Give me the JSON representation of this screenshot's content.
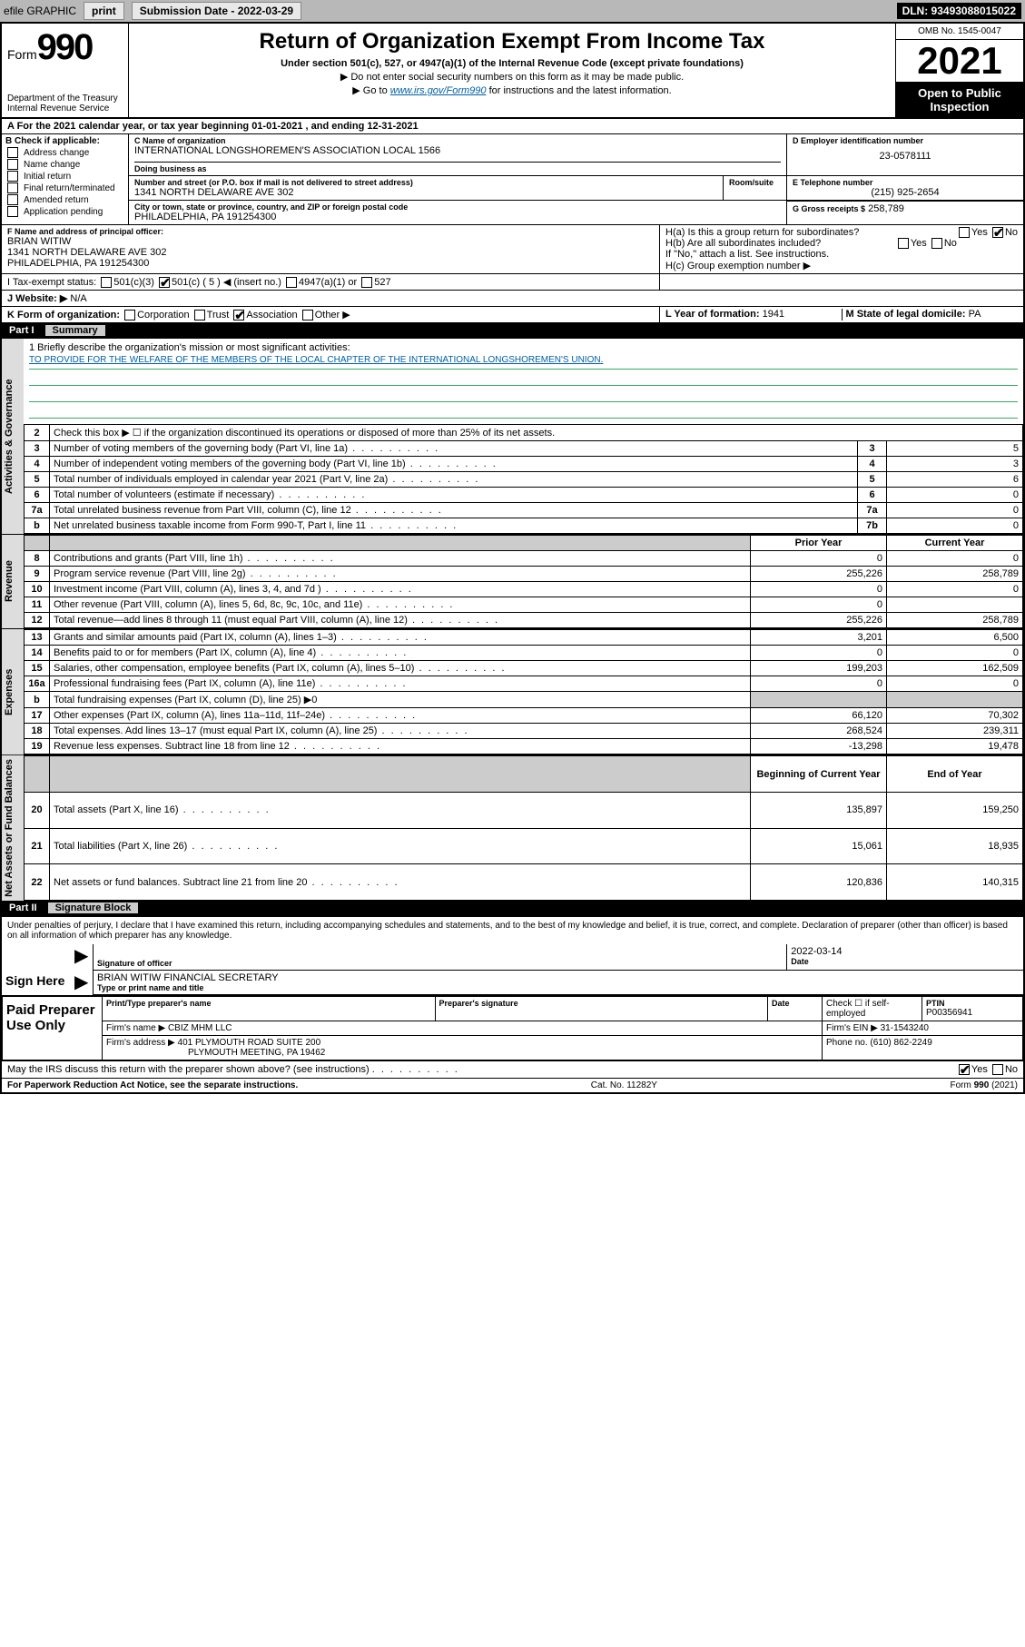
{
  "toolbar": {
    "efile_label": "efile GRAPHIC",
    "print_label": "print",
    "submission_label": "Submission Date - 2022-03-29",
    "dln": "DLN: 93493088015022"
  },
  "header": {
    "form_word": "Form",
    "form_num": "990",
    "dept": "Department of the Treasury\nInternal Revenue Service",
    "title": "Return of Organization Exempt From Income Tax",
    "subtitle": "Under section 501(c), 527, or 4947(a)(1) of the Internal Revenue Code (except private foundations)",
    "note1": "▶ Do not enter social security numbers on this form as it may be made public.",
    "note2_pre": "▶ Go to ",
    "note2_link": "www.irs.gov/Form990",
    "note2_post": " for instructions and the latest information.",
    "omb": "OMB No. 1545-0047",
    "year": "2021",
    "open_public": "Open to Public Inspection"
  },
  "line_a": "A For the 2021 calendar year, or tax year beginning 01-01-2021    , and ending 12-31-2021",
  "section_b": {
    "header": "B Check if applicable:",
    "items": [
      "Address change",
      "Name change",
      "Initial return",
      "Final return/terminated",
      "Amended return",
      "Application pending"
    ]
  },
  "section_c": {
    "name_label": "C Name of organization",
    "name": "INTERNATIONAL LONGSHOREMEN'S ASSOCIATION LOCAL 1566",
    "dba_label": "Doing business as",
    "addr_label": "Number and street (or P.O. box if mail is not delivered to street address)",
    "room_label": "Room/suite",
    "addr": "1341 NORTH DELAWARE AVE 302",
    "city_label": "City or town, state or province, country, and ZIP or foreign postal code",
    "city": "PHILADELPHIA, PA  191254300"
  },
  "section_d": {
    "label": "D Employer identification number",
    "value": "23-0578111"
  },
  "section_e": {
    "label": "E Telephone number",
    "value": "(215) 925-2654"
  },
  "section_g": {
    "label": "G Gross receipts $",
    "value": "258,789"
  },
  "section_f": {
    "label": "F  Name and address of principal officer:",
    "name": "BRIAN WITIW",
    "addr1": "1341 NORTH DELAWARE AVE 302",
    "addr2": "PHILADELPHIA, PA  191254300"
  },
  "section_h": {
    "ha": "H(a)  Is this a group return for subordinates?",
    "hb": "H(b)  Are all subordinates included?",
    "hb_note": "If \"No,\" attach a list. See instructions.",
    "hc": "H(c)  Group exemption number ▶",
    "yes": "Yes",
    "no": "No"
  },
  "section_i": {
    "label": "I     Tax-exempt status:",
    "c3": "501(c)(3)",
    "c": "501(c) ( 5 ) ◀ (insert no.)",
    "a1": "4947(a)(1) or",
    "s527": "527"
  },
  "section_j": {
    "label": "J    Website: ▶",
    "value": "N/A"
  },
  "section_k": {
    "label": "K Form of organization:",
    "corp": "Corporation",
    "trust": "Trust",
    "assoc": "Association",
    "other": "Other ▶"
  },
  "section_l": {
    "label": "L Year of formation:",
    "value": "1941"
  },
  "section_m": {
    "label": "M State of legal domicile:",
    "value": "PA"
  },
  "part1": {
    "label": "Part I",
    "title": "Summary",
    "q1": "1  Briefly describe the organization's mission or most significant activities:",
    "mission": "TO PROVIDE FOR THE WELFARE OF THE MEMBERS OF THE LOCAL CHAPTER OF THE INTERNATIONAL LONGSHOREMEN'S UNION.",
    "side_gov": "Activities & Governance",
    "side_rev": "Revenue",
    "side_exp": "Expenses",
    "side_net": "Net Assets or Fund Balances",
    "rows_gov": [
      {
        "n": "2",
        "d": "Check this box ▶ ☐  if the organization discontinued its operations or disposed of more than 25% of its net assets."
      },
      {
        "n": "3",
        "d": "Number of voting members of the governing body (Part VI, line 1a)",
        "box": "3",
        "v": "5"
      },
      {
        "n": "4",
        "d": "Number of independent voting members of the governing body (Part VI, line 1b)",
        "box": "4",
        "v": "3"
      },
      {
        "n": "5",
        "d": "Total number of individuals employed in calendar year 2021 (Part V, line 2a)",
        "box": "5",
        "v": "6"
      },
      {
        "n": "6",
        "d": "Total number of volunteers (estimate if necessary)",
        "box": "6",
        "v": "0"
      },
      {
        "n": "7a",
        "d": "Total unrelated business revenue from Part VIII, column (C), line 12",
        "box": "7a",
        "v": "0"
      },
      {
        "n": "b",
        "d": "Net unrelated business taxable income from Form 990-T, Part I, line 11",
        "box": "7b",
        "v": "0"
      }
    ],
    "col_prior": "Prior Year",
    "col_current": "Current Year",
    "rows_rev": [
      {
        "n": "8",
        "d": "Contributions and grants (Part VIII, line 1h)",
        "p": "0",
        "c": "0"
      },
      {
        "n": "9",
        "d": "Program service revenue (Part VIII, line 2g)",
        "p": "255,226",
        "c": "258,789"
      },
      {
        "n": "10",
        "d": "Investment income (Part VIII, column (A), lines 3, 4, and 7d )",
        "p": "0",
        "c": "0"
      },
      {
        "n": "11",
        "d": "Other revenue (Part VIII, column (A), lines 5, 6d, 8c, 9c, 10c, and 11e)",
        "p": "0",
        "c": ""
      },
      {
        "n": "12",
        "d": "Total revenue—add lines 8 through 11 (must equal Part VIII, column (A), line 12)",
        "p": "255,226",
        "c": "258,789"
      }
    ],
    "rows_exp": [
      {
        "n": "13",
        "d": "Grants and similar amounts paid (Part IX, column (A), lines 1–3)",
        "p": "3,201",
        "c": "6,500"
      },
      {
        "n": "14",
        "d": "Benefits paid to or for members (Part IX, column (A), line 4)",
        "p": "0",
        "c": "0"
      },
      {
        "n": "15",
        "d": "Salaries, other compensation, employee benefits (Part IX, column (A), lines 5–10)",
        "p": "199,203",
        "c": "162,509"
      },
      {
        "n": "16a",
        "d": "Professional fundraising fees (Part IX, column (A), line 11e)",
        "p": "0",
        "c": "0"
      },
      {
        "n": "b",
        "d": "Total fundraising expenses (Part IX, column (D), line 25) ▶0",
        "p": "",
        "c": "",
        "gray": true
      },
      {
        "n": "17",
        "d": "Other expenses (Part IX, column (A), lines 11a–11d, 11f–24e)",
        "p": "66,120",
        "c": "70,302"
      },
      {
        "n": "18",
        "d": "Total expenses. Add lines 13–17 (must equal Part IX, column (A), line 25)",
        "p": "268,524",
        "c": "239,311"
      },
      {
        "n": "19",
        "d": "Revenue less expenses. Subtract line 18 from line 12",
        "p": "-13,298",
        "c": "19,478"
      }
    ],
    "col_begin": "Beginning of Current Year",
    "col_end": "End of Year",
    "rows_net": [
      {
        "n": "20",
        "d": "Total assets (Part X, line 16)",
        "p": "135,897",
        "c": "159,250"
      },
      {
        "n": "21",
        "d": "Total liabilities (Part X, line 26)",
        "p": "15,061",
        "c": "18,935"
      },
      {
        "n": "22",
        "d": "Net assets or fund balances. Subtract line 21 from line 20",
        "p": "120,836",
        "c": "140,315"
      }
    ]
  },
  "part2": {
    "label": "Part II",
    "title": "Signature Block",
    "perjury": "Under penalties of perjury, I declare that I have examined this return, including accompanying schedules and statements, and to the best of my knowledge and belief, it is true, correct, and complete. Declaration of preparer (other than officer) is based on all information of which preparer has any knowledge.",
    "sign_here": "Sign Here",
    "sig_officer": "Signature of officer",
    "sig_date": "2022-03-14",
    "date_label": "Date",
    "officer_name": "BRIAN WITIW  FINANCIAL SECRETARY",
    "officer_sub": "Type or print name and title",
    "paid_label": "Paid Preparer Use Only",
    "prep_name_label": "Print/Type preparer's name",
    "prep_sig_label": "Preparer's signature",
    "prep_date_label": "Date",
    "prep_check": "Check ☐ if self-employed",
    "ptin_label": "PTIN",
    "ptin": "P00356941",
    "firm_name_label": "Firm's name    ▶",
    "firm_name": "CBIZ MHM LLC",
    "firm_ein_label": "Firm's EIN ▶",
    "firm_ein": "31-1543240",
    "firm_addr_label": "Firm's address ▶",
    "firm_addr1": "401 PLYMOUTH ROAD SUITE 200",
    "firm_addr2": "PLYMOUTH MEETING, PA  19462",
    "firm_phone_label": "Phone no.",
    "firm_phone": "(610) 862-2249",
    "may_irs": "May the IRS discuss this return with the preparer shown above? (see instructions)",
    "yes": "Yes",
    "no": "No"
  },
  "footer": {
    "left": "For Paperwork Reduction Act Notice, see the separate instructions.",
    "center": "Cat. No. 11282Y",
    "right": "Form 990 (2021)"
  }
}
